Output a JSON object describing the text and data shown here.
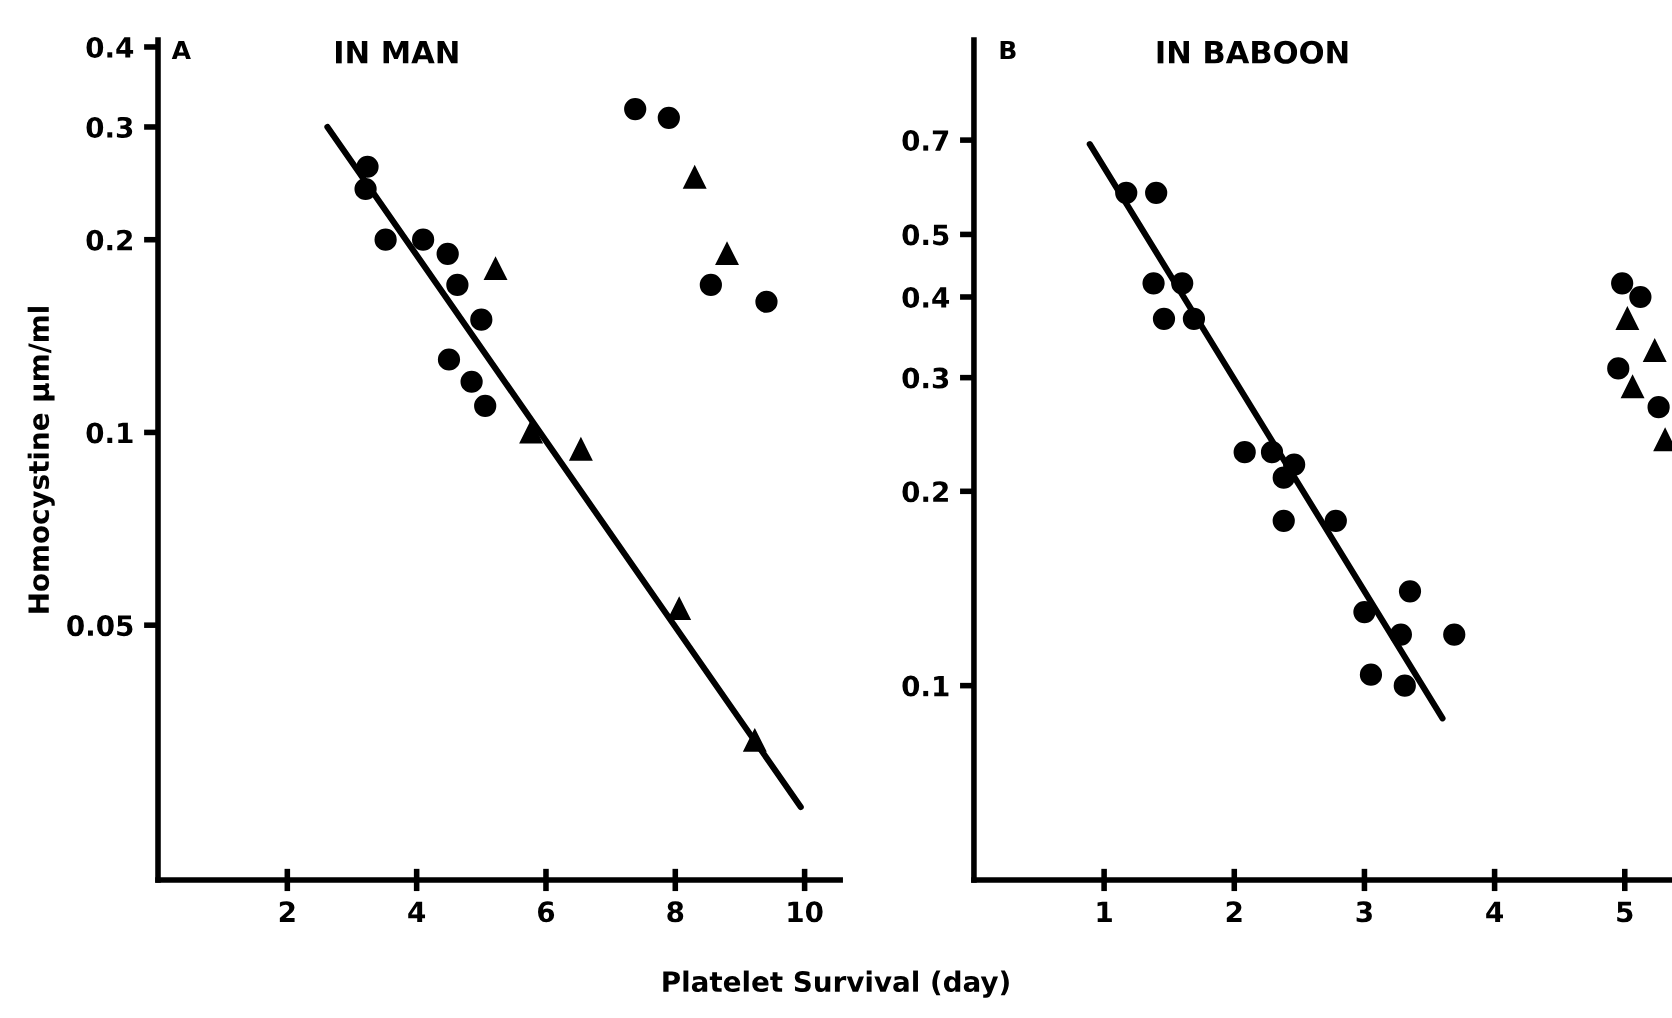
{
  "chart_data": [
    {
      "type": "scatter",
      "title": "IN MAN",
      "ylabel": "Homocystine µm/ml",
      "xlabel": "Platelet Survival (day)",
      "annotations": [
        "A"
      ],
      "log": "y",
      "xlim": [
        0,
        10.55
      ],
      "xticks": [
        2,
        4,
        6,
        8,
        10
      ],
      "ylim": [
        0.02,
        0.41
      ],
      "yticks": [
        0.4,
        0.3,
        0.2,
        0.1,
        0.05
      ],
      "grid": false,
      "legend": false,
      "series": [
        {
          "type": "scatter",
          "marker": "circle",
          "color": "#000000",
          "x": [
            3.24,
            3.21,
            3.52,
            4.1,
            4.48,
            4.63,
            5.0,
            4.5,
            4.85,
            5.06
          ],
          "values": [
            0.26,
            0.24,
            0.2,
            0.2,
            0.19,
            0.17,
            0.15,
            0.13,
            0.12,
            0.11
          ]
        },
        {
          "type": "scatter",
          "marker": "triangle",
          "color": "#000000",
          "x": [
            5.22,
            5.77,
            6.54,
            8.06,
            9.23,
            8.3,
            8.8
          ],
          "values": [
            0.18,
            0.1,
            0.094,
            0.053,
            0.033,
            0.25,
            0.19
          ]
        },
        {
          "type": "scatter",
          "marker": "circle",
          "color": "#000000",
          "x": [
            7.38,
            7.9,
            8.55,
            9.41
          ],
          "values": [
            0.32,
            0.31,
            0.17,
            0.16
          ]
        },
        {
          "type": "line",
          "line_style": "solid",
          "marker": "none",
          "color": "#000000",
          "x": [
            2.62,
            9.94
          ],
          "values": [
            0.3,
            0.026
          ]
        }
      ]
    },
    {
      "type": "scatter",
      "title": "IN BABOON",
      "annotations": [
        "B"
      ],
      "log": "y",
      "xlim": [
        0,
        5.35
      ],
      "xticks": [
        1,
        2,
        3,
        4,
        5
      ],
      "ylim": [
        0.05,
        1.0
      ],
      "yticks": [
        0.7,
        0.5,
        0.4,
        0.3,
        0.2,
        0.1
      ],
      "grid": false,
      "legend": false,
      "series": [
        {
          "type": "scatter",
          "marker": "circle",
          "color": "#000000",
          "x": [
            1.17,
            1.4,
            1.38,
            1.6,
            1.46,
            1.69,
            2.08,
            2.29,
            2.38,
            2.46,
            2.38,
            2.78,
            3.0,
            3.35,
            3.28,
            3.69,
            3.05,
            3.31
          ],
          "values": [
            0.58,
            0.58,
            0.42,
            0.42,
            0.37,
            0.37,
            0.23,
            0.23,
            0.21,
            0.22,
            0.18,
            0.18,
            0.13,
            0.14,
            0.12,
            0.12,
            0.104,
            0.1
          ]
        },
        {
          "type": "scatter",
          "marker": "triangle",
          "color": "#000000",
          "x": [
            5.02,
            5.23,
            5.06,
            5.31
          ],
          "values": [
            0.37,
            0.33,
            0.29,
            0.24
          ]
        },
        {
          "type": "scatter",
          "marker": "circle",
          "color": "#000000",
          "x": [
            4.98,
            5.12,
            4.95,
            5.26
          ],
          "values": [
            0.42,
            0.4,
            0.31,
            0.27
          ]
        },
        {
          "type": "line",
          "line_style": "solid",
          "marker": "none",
          "color": "#000000",
          "x": [
            0.89,
            3.6
          ],
          "values": [
            0.69,
            0.089
          ]
        }
      ]
    }
  ]
}
